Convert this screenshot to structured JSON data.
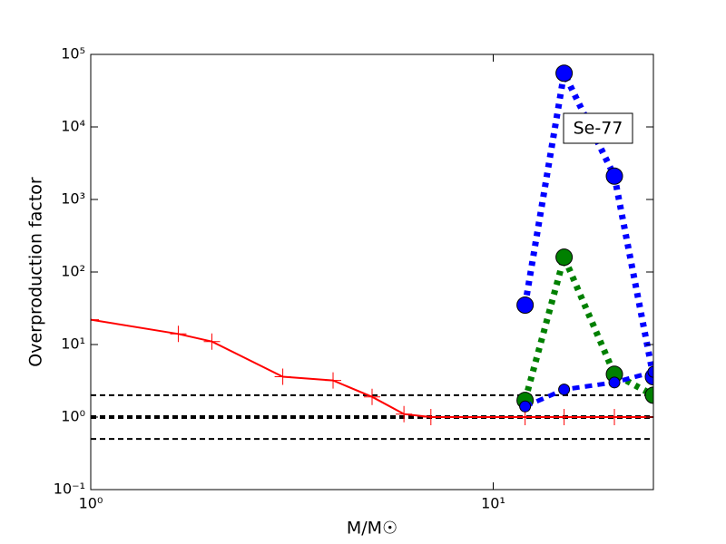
{
  "chart_data": {
    "type": "line",
    "xlabel": "M/M☉",
    "ylabel": "Overproduction factor",
    "annotation": "Se-77",
    "xlog": true,
    "ylog": true,
    "xlim": [
      1,
      25
    ],
    "ylim": [
      0.1,
      100000
    ],
    "xticks": [
      {
        "value": 1,
        "label": "10⁰"
      },
      {
        "value": 10,
        "label": "10¹"
      }
    ],
    "yticks": [
      {
        "value": 0.1,
        "label": "10⁻¹"
      },
      {
        "value": 1,
        "label": "10⁰"
      },
      {
        "value": 10,
        "label": "10¹"
      },
      {
        "value": 100,
        "label": "10²"
      },
      {
        "value": 1000,
        "label": "10³"
      },
      {
        "value": 10000,
        "label": "10⁴"
      },
      {
        "value": 100000,
        "label": "10⁵"
      }
    ],
    "hlines": [
      0.5,
      1,
      2
    ],
    "series": [
      {
        "color": "#ff0000",
        "style": "solid",
        "marker": "plus",
        "x": [
          1,
          1.65,
          2,
          3,
          4,
          5,
          6,
          7,
          12,
          15,
          20,
          25
        ],
        "values": [
          22,
          14,
          11,
          3.6,
          3.2,
          1.9,
          1.1,
          1.0,
          1.0,
          1.0,
          1.0,
          1.0
        ]
      },
      {
        "color": "#0000ff",
        "style": "dotted",
        "marker": "circle",
        "x": [
          12,
          15,
          20,
          25
        ],
        "values": [
          35,
          55000,
          2100,
          3.6
        ]
      },
      {
        "color": "#008000",
        "style": "dotted",
        "marker": "circle",
        "x": [
          12,
          15,
          20,
          25
        ],
        "values": [
          1.7,
          160,
          3.9,
          2.0
        ]
      },
      {
        "color": "#0000ff",
        "style": "dashed",
        "marker": "small-circle",
        "x": [
          12,
          15,
          20,
          25
        ],
        "values": [
          1.4,
          2.4,
          3.0,
          4.2
        ]
      }
    ]
  }
}
